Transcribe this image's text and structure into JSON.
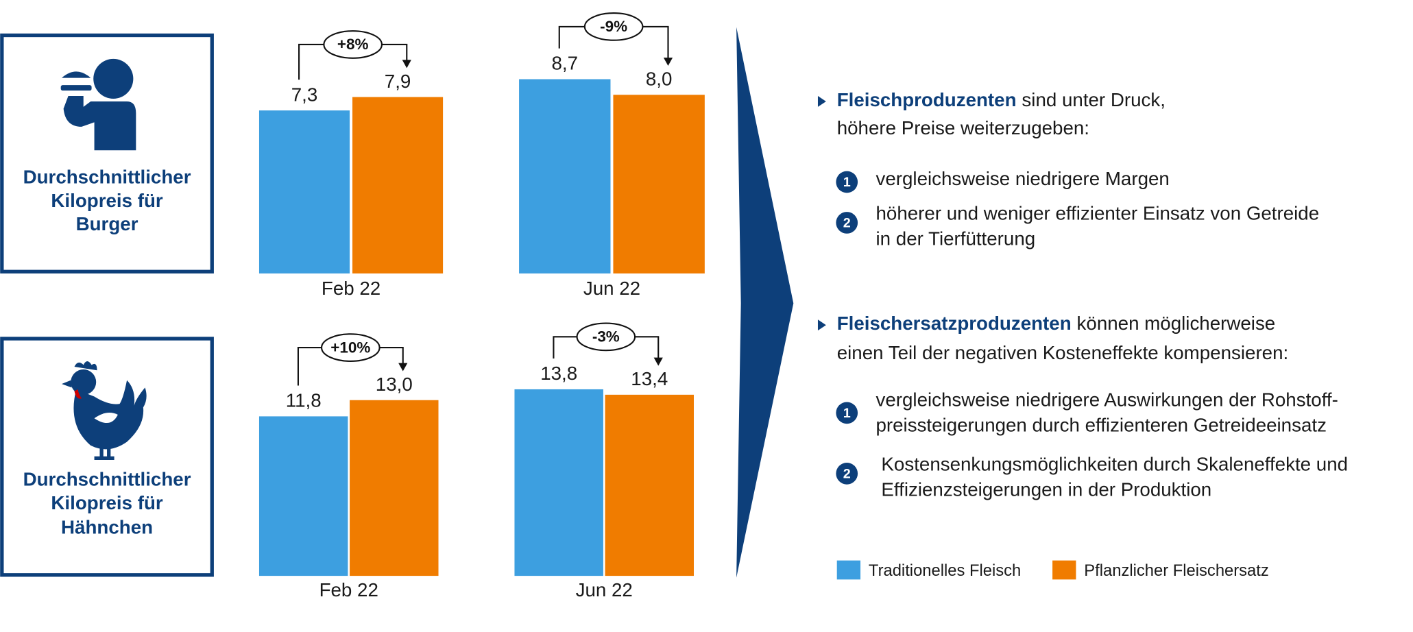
{
  "chart_data": [
    {
      "type": "bar",
      "title_lines": [
        "Durchschnittlicher",
        "Kilopreis für",
        "Burger"
      ],
      "categories": [
        "Feb 22",
        "Jun 22"
      ],
      "series": [
        {
          "name": "Traditionelles Fleisch",
          "color": "#3d9fe0",
          "values": [
            7.3,
            8.7
          ],
          "value_labels": [
            "7,3",
            "8,7"
          ]
        },
        {
          "name": "Pflanzlicher Fleischersatz",
          "color": "#f07c00",
          "values": [
            7.9,
            8.0
          ],
          "value_labels": [
            "7,9",
            "8,0"
          ]
        }
      ],
      "changes": [
        "+8%",
        "-9%"
      ]
    },
    {
      "type": "bar",
      "title_lines": [
        "Durchschnittlicher",
        "Kilopreis für",
        "Hähnchen"
      ],
      "categories": [
        "Feb 22",
        "Jun 22"
      ],
      "series": [
        {
          "color": "#3d9fe0",
          "values": [
            11.8,
            13.8
          ],
          "value_labels": [
            "11,8",
            "13,8"
          ]
        },
        {
          "color": "#f07c00",
          "values": [
            13.0,
            13.4
          ],
          "value_labels": [
            "13,0",
            "13,4"
          ]
        }
      ],
      "changes": [
        "+10%",
        "-3%"
      ]
    }
  ],
  "notes": [
    {
      "lead": "Fleischproduzenten",
      "rest": "sind unter Druck,",
      "line2": "höhere Preise weiterzugeben:",
      "items": [
        {
          "number": "1",
          "lines": [
            "vergleichsweise niedrigere Margen"
          ]
        },
        {
          "number": "2",
          "lines": [
            "höherer und weniger effizienter Einsatz von Getreide",
            "in der Tierfütterung"
          ]
        }
      ]
    },
    {
      "lead": "Fleischersatzproduzenten",
      "rest": "können möglicherweise",
      "line2": "einen Teil der negativen Kosteneffekte kompensieren:",
      "items": [
        {
          "number": "1",
          "lines": [
            "vergleichsweise niedrigere Auswirkungen der Rohstoff-",
            "preissteigerungen durch effizienteren Getreideeinsatz"
          ]
        },
        {
          "number": "2",
          "lines": [
            "Kostensenkungsmöglichkeiten durch Skaleneffekte und",
            "Effizienzsteigerungen in der Produktion"
          ]
        }
      ]
    }
  ]
}
